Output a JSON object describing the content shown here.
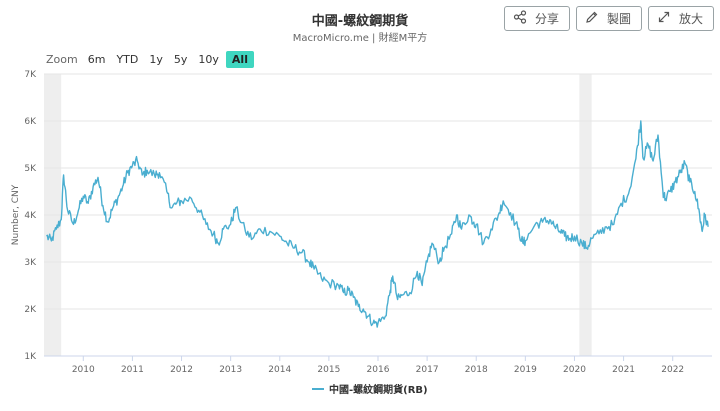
{
  "header": {
    "title": "中國-螺紋鋼期貨",
    "subtitle": "MacroMicro.me | 財經M平方"
  },
  "actions": [
    {
      "label": "分享",
      "icon": "share-icon"
    },
    {
      "label": "製圖",
      "icon": "pencil-icon"
    },
    {
      "label": "放大",
      "icon": "expand-icon"
    }
  ],
  "zoom": {
    "label": "Zoom",
    "options": [
      "6m",
      "YTD",
      "1y",
      "5y",
      "10y",
      "All"
    ],
    "active": "All"
  },
  "colors": {
    "series": "#4aaed0",
    "recession": "#eeeeee",
    "grid": "#e6e6e6",
    "active_zoom": "#3fd6c0"
  },
  "chart_data": {
    "type": "line",
    "ylabel": "Number, CNY",
    "ylim": [
      1000,
      7000
    ],
    "yticks": [
      1000,
      2000,
      3000,
      4000,
      5000,
      6000,
      7000
    ],
    "ytick_labels": [
      "1K",
      "2K",
      "3K",
      "4K",
      "5K",
      "6K",
      "7K"
    ],
    "xlim": [
      2009.2,
      2022.8
    ],
    "xticks": [
      2010,
      2011,
      2012,
      2013,
      2014,
      2015,
      2016,
      2017,
      2018,
      2019,
      2020,
      2021,
      2022
    ],
    "xtick_labels": [
      "2010",
      "2011",
      "2012",
      "2013",
      "2014",
      "2015",
      "2016",
      "2017",
      "2018",
      "2019",
      "2020",
      "2021",
      "2022"
    ],
    "grid": true,
    "legend": "bottom-center",
    "shaded_periods": [
      [
        2009.2,
        2009.55
      ],
      [
        2020.1,
        2020.35
      ]
    ],
    "series": [
      {
        "name": "中國-螺紋鋼期貨(RB)",
        "points": [
          [
            2009.25,
            3550
          ],
          [
            2009.35,
            3450
          ],
          [
            2009.45,
            3700
          ],
          [
            2009.55,
            3900
          ],
          [
            2009.6,
            4850
          ],
          [
            2009.68,
            4100
          ],
          [
            2009.8,
            3800
          ],
          [
            2009.9,
            4100
          ],
          [
            2010.0,
            4400
          ],
          [
            2010.1,
            4250
          ],
          [
            2010.2,
            4600
          ],
          [
            2010.3,
            4800
          ],
          [
            2010.4,
            4200
          ],
          [
            2010.5,
            3850
          ],
          [
            2010.6,
            4150
          ],
          [
            2010.7,
            4350
          ],
          [
            2010.8,
            4600
          ],
          [
            2010.9,
            4900
          ],
          [
            2011.0,
            5050
          ],
          [
            2011.1,
            5150
          ],
          [
            2011.2,
            4850
          ],
          [
            2011.3,
            4950
          ],
          [
            2011.45,
            4850
          ],
          [
            2011.55,
            4900
          ],
          [
            2011.7,
            4500
          ],
          [
            2011.8,
            4150
          ],
          [
            2011.9,
            4250
          ],
          [
            2012.0,
            4300
          ],
          [
            2012.2,
            4350
          ],
          [
            2012.35,
            4100
          ],
          [
            2012.5,
            3800
          ],
          [
            2012.65,
            3600
          ],
          [
            2012.75,
            3400
          ],
          [
            2012.85,
            3700
          ],
          [
            2013.0,
            3800
          ],
          [
            2013.1,
            4150
          ],
          [
            2013.3,
            3650
          ],
          [
            2013.45,
            3500
          ],
          [
            2013.6,
            3700
          ],
          [
            2013.8,
            3650
          ],
          [
            2014.0,
            3550
          ],
          [
            2014.15,
            3400
          ],
          [
            2014.3,
            3300
          ],
          [
            2014.45,
            3200
          ],
          [
            2014.6,
            3000
          ],
          [
            2014.7,
            2850
          ],
          [
            2014.85,
            2650
          ],
          [
            2015.0,
            2550
          ],
          [
            2015.2,
            2500
          ],
          [
            2015.3,
            2350
          ],
          [
            2015.4,
            2400
          ],
          [
            2015.5,
            2250
          ],
          [
            2015.6,
            2050
          ],
          [
            2015.7,
            2000
          ],
          [
            2015.8,
            1850
          ],
          [
            2015.9,
            1700
          ],
          [
            2016.0,
            1700
          ],
          [
            2016.15,
            1850
          ],
          [
            2016.25,
            2400
          ],
          [
            2016.3,
            2700
          ],
          [
            2016.4,
            2200
          ],
          [
            2016.5,
            2300
          ],
          [
            2016.65,
            2350
          ],
          [
            2016.8,
            2800
          ],
          [
            2016.9,
            2500
          ],
          [
            2017.0,
            3000
          ],
          [
            2017.1,
            3400
          ],
          [
            2017.25,
            3000
          ],
          [
            2017.35,
            3300
          ],
          [
            2017.5,
            3600
          ],
          [
            2017.6,
            4000
          ],
          [
            2017.7,
            3700
          ],
          [
            2017.85,
            4000
          ],
          [
            2017.95,
            3850
          ],
          [
            2018.0,
            3800
          ],
          [
            2018.15,
            3400
          ],
          [
            2018.3,
            3700
          ],
          [
            2018.45,
            4000
          ],
          [
            2018.55,
            4300
          ],
          [
            2018.7,
            4050
          ],
          [
            2018.85,
            3700
          ],
          [
            2018.95,
            3400
          ],
          [
            2019.0,
            3450
          ],
          [
            2019.2,
            3800
          ],
          [
            2019.35,
            3850
          ],
          [
            2019.5,
            3900
          ],
          [
            2019.6,
            3750
          ],
          [
            2019.7,
            3650
          ],
          [
            2019.8,
            3550
          ],
          [
            2019.9,
            3500
          ],
          [
            2020.0,
            3550
          ],
          [
            2020.15,
            3400
          ],
          [
            2020.25,
            3300
          ],
          [
            2020.35,
            3500
          ],
          [
            2020.5,
            3600
          ],
          [
            2020.65,
            3750
          ],
          [
            2020.8,
            3800
          ],
          [
            2020.95,
            4250
          ],
          [
            2021.1,
            4450
          ],
          [
            2021.25,
            5200
          ],
          [
            2021.35,
            6000
          ],
          [
            2021.4,
            5200
          ],
          [
            2021.5,
            5500
          ],
          [
            2021.6,
            5150
          ],
          [
            2021.7,
            5700
          ],
          [
            2021.8,
            4500
          ],
          [
            2021.85,
            4350
          ],
          [
            2021.95,
            4500
          ],
          [
            2022.05,
            4700
          ],
          [
            2022.15,
            4900
          ],
          [
            2022.25,
            5100
          ],
          [
            2022.35,
            4700
          ],
          [
            2022.45,
            4500
          ],
          [
            2022.55,
            4000
          ],
          [
            2022.6,
            3650
          ],
          [
            2022.65,
            4000
          ],
          [
            2022.72,
            3750
          ]
        ]
      }
    ]
  }
}
